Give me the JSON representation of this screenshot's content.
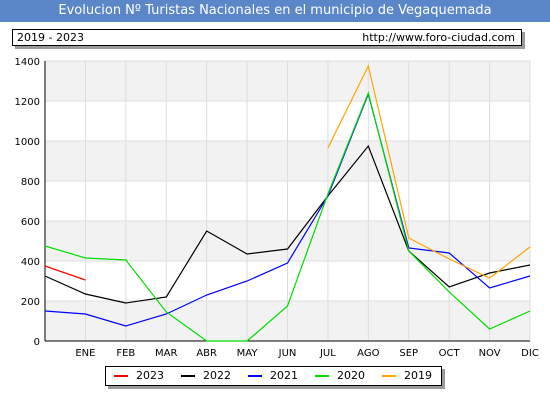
{
  "header": {
    "title": "Evolucion Nº Turistas Nacionales en el municipio de Vegaquemada",
    "range": "2019 - 2023",
    "url": "http://www.foro-ciudad.com"
  },
  "chart_data": {
    "type": "line",
    "title": "Evolucion Nº Turistas Nacionales en el municipio de Vegaquemada",
    "xlabel": "",
    "ylabel": "",
    "categories": [
      "ENE",
      "FEB",
      "MAR",
      "ABR",
      "MAY",
      "JUN",
      "JUL",
      "AGO",
      "SEP",
      "OCT",
      "NOV",
      "DIC"
    ],
    "ylim": [
      0,
      1400
    ],
    "yticks": [
      0,
      200,
      400,
      600,
      800,
      1000,
      1200,
      1400
    ],
    "grid": true,
    "legend_position": "bottom",
    "series": [
      {
        "name": "2023",
        "color": "#ff0000",
        "points": [
          [
            -1,
            375
          ],
          [
            0,
            305
          ]
        ]
      },
      {
        "name": "2022",
        "color": "#000000",
        "points": [
          [
            -1,
            325
          ],
          [
            0,
            235
          ],
          [
            1,
            190
          ],
          [
            2,
            220
          ],
          [
            3,
            550
          ],
          [
            4,
            435
          ],
          [
            5,
            460
          ],
          [
            6,
            725
          ],
          [
            7,
            975
          ],
          [
            8,
            450
          ],
          [
            9,
            270
          ],
          [
            10,
            340
          ],
          [
            11,
            380
          ]
        ]
      },
      {
        "name": "2021",
        "color": "#0000ff",
        "points": [
          [
            -1,
            150
          ],
          [
            0,
            135
          ],
          [
            1,
            75
          ],
          [
            2,
            135
          ],
          [
            3,
            230
          ],
          [
            4,
            300
          ],
          [
            5,
            390
          ],
          [
            6,
            725
          ],
          [
            7,
            1235
          ],
          [
            8,
            465
          ],
          [
            9,
            440
          ],
          [
            10,
            265
          ],
          [
            11,
            325
          ]
        ]
      },
      {
        "name": "2020",
        "color": "#00dd00",
        "points": [
          [
            -1,
            475
          ],
          [
            0,
            415
          ],
          [
            1,
            405
          ],
          [
            2,
            145
          ],
          [
            3,
            0
          ],
          [
            4,
            0
          ],
          [
            5,
            175
          ],
          [
            6,
            735
          ],
          [
            7,
            1240
          ],
          [
            8,
            450
          ],
          [
            9,
            245
          ],
          [
            10,
            60
          ],
          [
            11,
            150
          ]
        ]
      },
      {
        "name": "2019",
        "color": "#ffa500",
        "points": [
          [
            6,
            965
          ],
          [
            7,
            1375
          ],
          [
            8,
            515
          ],
          [
            9,
            410
          ],
          [
            10,
            315
          ],
          [
            11,
            470
          ]
        ]
      }
    ]
  }
}
